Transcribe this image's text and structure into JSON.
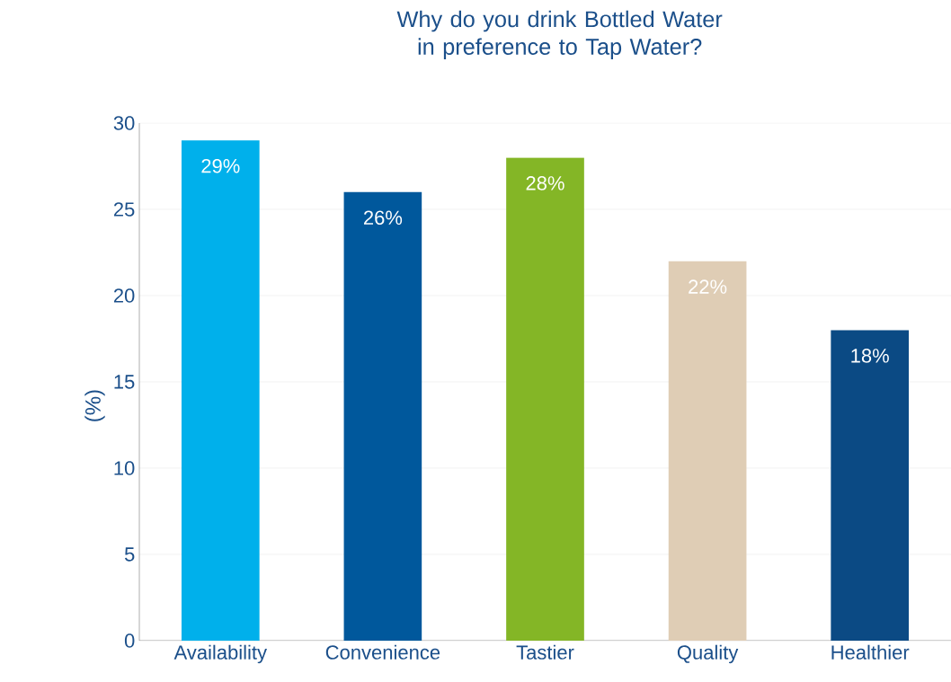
{
  "chart_data": {
    "type": "bar",
    "title": "Why do you drink Bottled Water in preference to Tap Water?",
    "ylabel": "(%)",
    "categories": [
      "Availability",
      "Convenience",
      "Tastier",
      "Quality",
      "Healthier"
    ],
    "values": [
      29,
      26,
      28,
      22,
      18
    ],
    "colors": [
      "#00b0eb",
      "#00589c",
      "#84b626",
      "#dfcdb5",
      "#0b4a84"
    ],
    "value_labels": [
      "29%",
      "26%",
      "28%",
      "22%",
      "18%"
    ],
    "ylim": [
      0,
      30
    ],
    "yticks": [
      0,
      5,
      10,
      15,
      20,
      25,
      30
    ],
    "grid": "y"
  }
}
